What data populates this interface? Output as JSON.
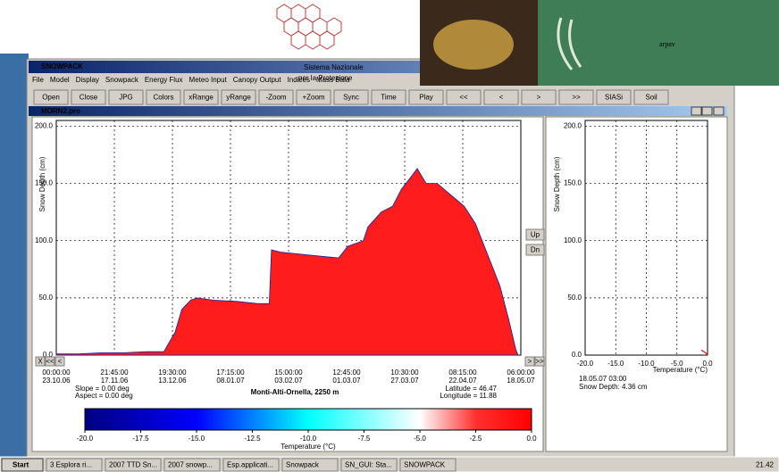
{
  "header": {
    "logo_lines": [
      "Sistema Nazionale",
      "per la Protezione"
    ],
    "brand": "arpav"
  },
  "window": {
    "title": "SNOWPACK",
    "menu": [
      "File",
      "Model",
      "Display",
      "Snowpack",
      "Energy Flux",
      "Meteo Input",
      "Canopy Output",
      "Indices",
      "Mass Bala"
    ],
    "toolbar": [
      "Open",
      "Close",
      "JPG",
      "Colors",
      "xRange",
      "yRange",
      "-Zoom",
      "+Zoom",
      "Sync",
      "Time",
      "Play",
      "<<",
      "<",
      ">",
      ">>",
      "SIASi",
      "Soil"
    ],
    "document": "MORN2.pro",
    "buttons": [
      "Up",
      "Dn"
    ],
    "scroll_left": [
      "X",
      "<<",
      "<"
    ],
    "scroll_right": [
      ">",
      ">>"
    ]
  },
  "chart_data": [
    {
      "type": "area",
      "y_label": "Snow Depth (cm)",
      "x": [
        0,
        10,
        20,
        30,
        40,
        48,
        50,
        53,
        56,
        60,
        63,
        70,
        80,
        90,
        95,
        96,
        100,
        110,
        120,
        126,
        130,
        137,
        139,
        145,
        150,
        154,
        158,
        161,
        165,
        170,
        176,
        182,
        187,
        190,
        194,
        198,
        202,
        205,
        206
      ],
      "values": [
        1,
        1,
        2,
        2,
        3,
        3,
        10,
        20,
        40,
        48,
        50,
        48,
        47,
        45,
        45,
        92,
        90,
        88,
        86,
        85,
        95,
        100,
        112,
        125,
        130,
        145,
        155,
        163,
        150,
        150,
        140,
        130,
        115,
        100,
        80,
        60,
        30,
        5,
        0
      ],
      "color": "#ff1c1c",
      "xlim": [
        0,
        207.25
      ],
      "xticks": [
        {
          "value": 0,
          "label": "00:00:00",
          "date": "23.10.06"
        },
        {
          "value": 25.90625,
          "label": "21:45:00",
          "date": "17.11.06"
        },
        {
          "value": 51.8125,
          "label": "19:30:00",
          "date": "13.12.06"
        },
        {
          "value": 77.71875,
          "label": "17:15:00",
          "date": "08.01.07"
        },
        {
          "value": 103.625,
          "label": "15:00:00",
          "date": "03.02.07"
        },
        {
          "value": 129.53125,
          "label": "12:45:00",
          "date": "01.03.07"
        },
        {
          "value": 155.4375,
          "label": "10:30:00",
          "date": "27.03.07"
        },
        {
          "value": 181.34375,
          "label": "08:15:00",
          "date": "22.04.07"
        },
        {
          "value": 207.25,
          "label": "06:00:00",
          "date": "18.05.07"
        }
      ],
      "ylim": [
        0,
        205
      ],
      "yticks": [
        {
          "value": 0,
          "label": "0.0"
        },
        {
          "value": 50,
          "label": "50.0"
        },
        {
          "value": 100,
          "label": "100.0"
        },
        {
          "value": 150,
          "label": "150.0"
        },
        {
          "value": 200,
          "label": "200.0"
        }
      ],
      "grid": true,
      "annotations": {
        "slope": "Slope = 0.00 deg",
        "aspect": "Aspect = 0.00 deg",
        "station": "Monti-Alti-Ornella, 2250 m",
        "latitude": "Latitude = 46.47",
        "longitude": "Longitude = 11.88"
      }
    },
    {
      "type": "line",
      "y_label": "Snow Depth (cm)",
      "x_label": "Temperature (°C)",
      "x": [
        -1.0,
        -0.3,
        0.0
      ],
      "values": [
        4.36,
        2,
        0
      ],
      "color": "#e00000",
      "xlim": [
        -20,
        0
      ],
      "xticks": [
        {
          "value": -20,
          "label": "-20.0"
        },
        {
          "value": -15,
          "label": "-15.0"
        },
        {
          "value": -10,
          "label": "-10.0"
        },
        {
          "value": -5,
          "label": "-5.0"
        },
        {
          "value": 0,
          "label": "0.0"
        }
      ],
      "ylim": [
        0,
        205
      ],
      "yticks": [
        {
          "value": 0,
          "label": "0.0"
        },
        {
          "value": 50,
          "label": "50.0"
        },
        {
          "value": 100,
          "label": "100.0"
        },
        {
          "value": 150,
          "label": "150.0"
        },
        {
          "value": 200,
          "label": "200.0"
        }
      ],
      "grid": true,
      "notes": [
        "18.05.07 03:00",
        "Snow Depth: 4.36 cm"
      ]
    },
    {
      "type": "colorbar",
      "x_label": "Temperature (°C)",
      "xlim": [
        -20,
        0
      ],
      "xticks": [
        {
          "value": -20,
          "label": "-20.0"
        },
        {
          "value": -17.5,
          "label": "-17.5"
        },
        {
          "value": -15,
          "label": "-15.0"
        },
        {
          "value": -12.5,
          "label": "-12.5"
        },
        {
          "value": -10,
          "label": "-10.0"
        },
        {
          "value": -7.5,
          "label": "-7.5"
        },
        {
          "value": -5,
          "label": "-5.0"
        },
        {
          "value": -2.5,
          "label": "-2.5"
        },
        {
          "value": 0,
          "label": "0.0"
        }
      ],
      "stops": [
        {
          "value": -20,
          "color": "#000080"
        },
        {
          "value": -15,
          "color": "#0000ff"
        },
        {
          "value": -10,
          "color": "#00ffff"
        },
        {
          "value": -5,
          "color": "#ffffff"
        },
        {
          "value": -2.5,
          "color": "#ff3030"
        },
        {
          "value": 0,
          "color": "#ff0000"
        }
      ]
    }
  ],
  "taskbar": {
    "start": "Start",
    "items": [
      "3 Esplora ri...",
      "2007 TTD Sn...",
      "2007 snowp...",
      "Esp.applicati...",
      "Snowpack",
      "SN_GUI: Sta...",
      "SNOWPACK"
    ],
    "clock": "21.42"
  }
}
